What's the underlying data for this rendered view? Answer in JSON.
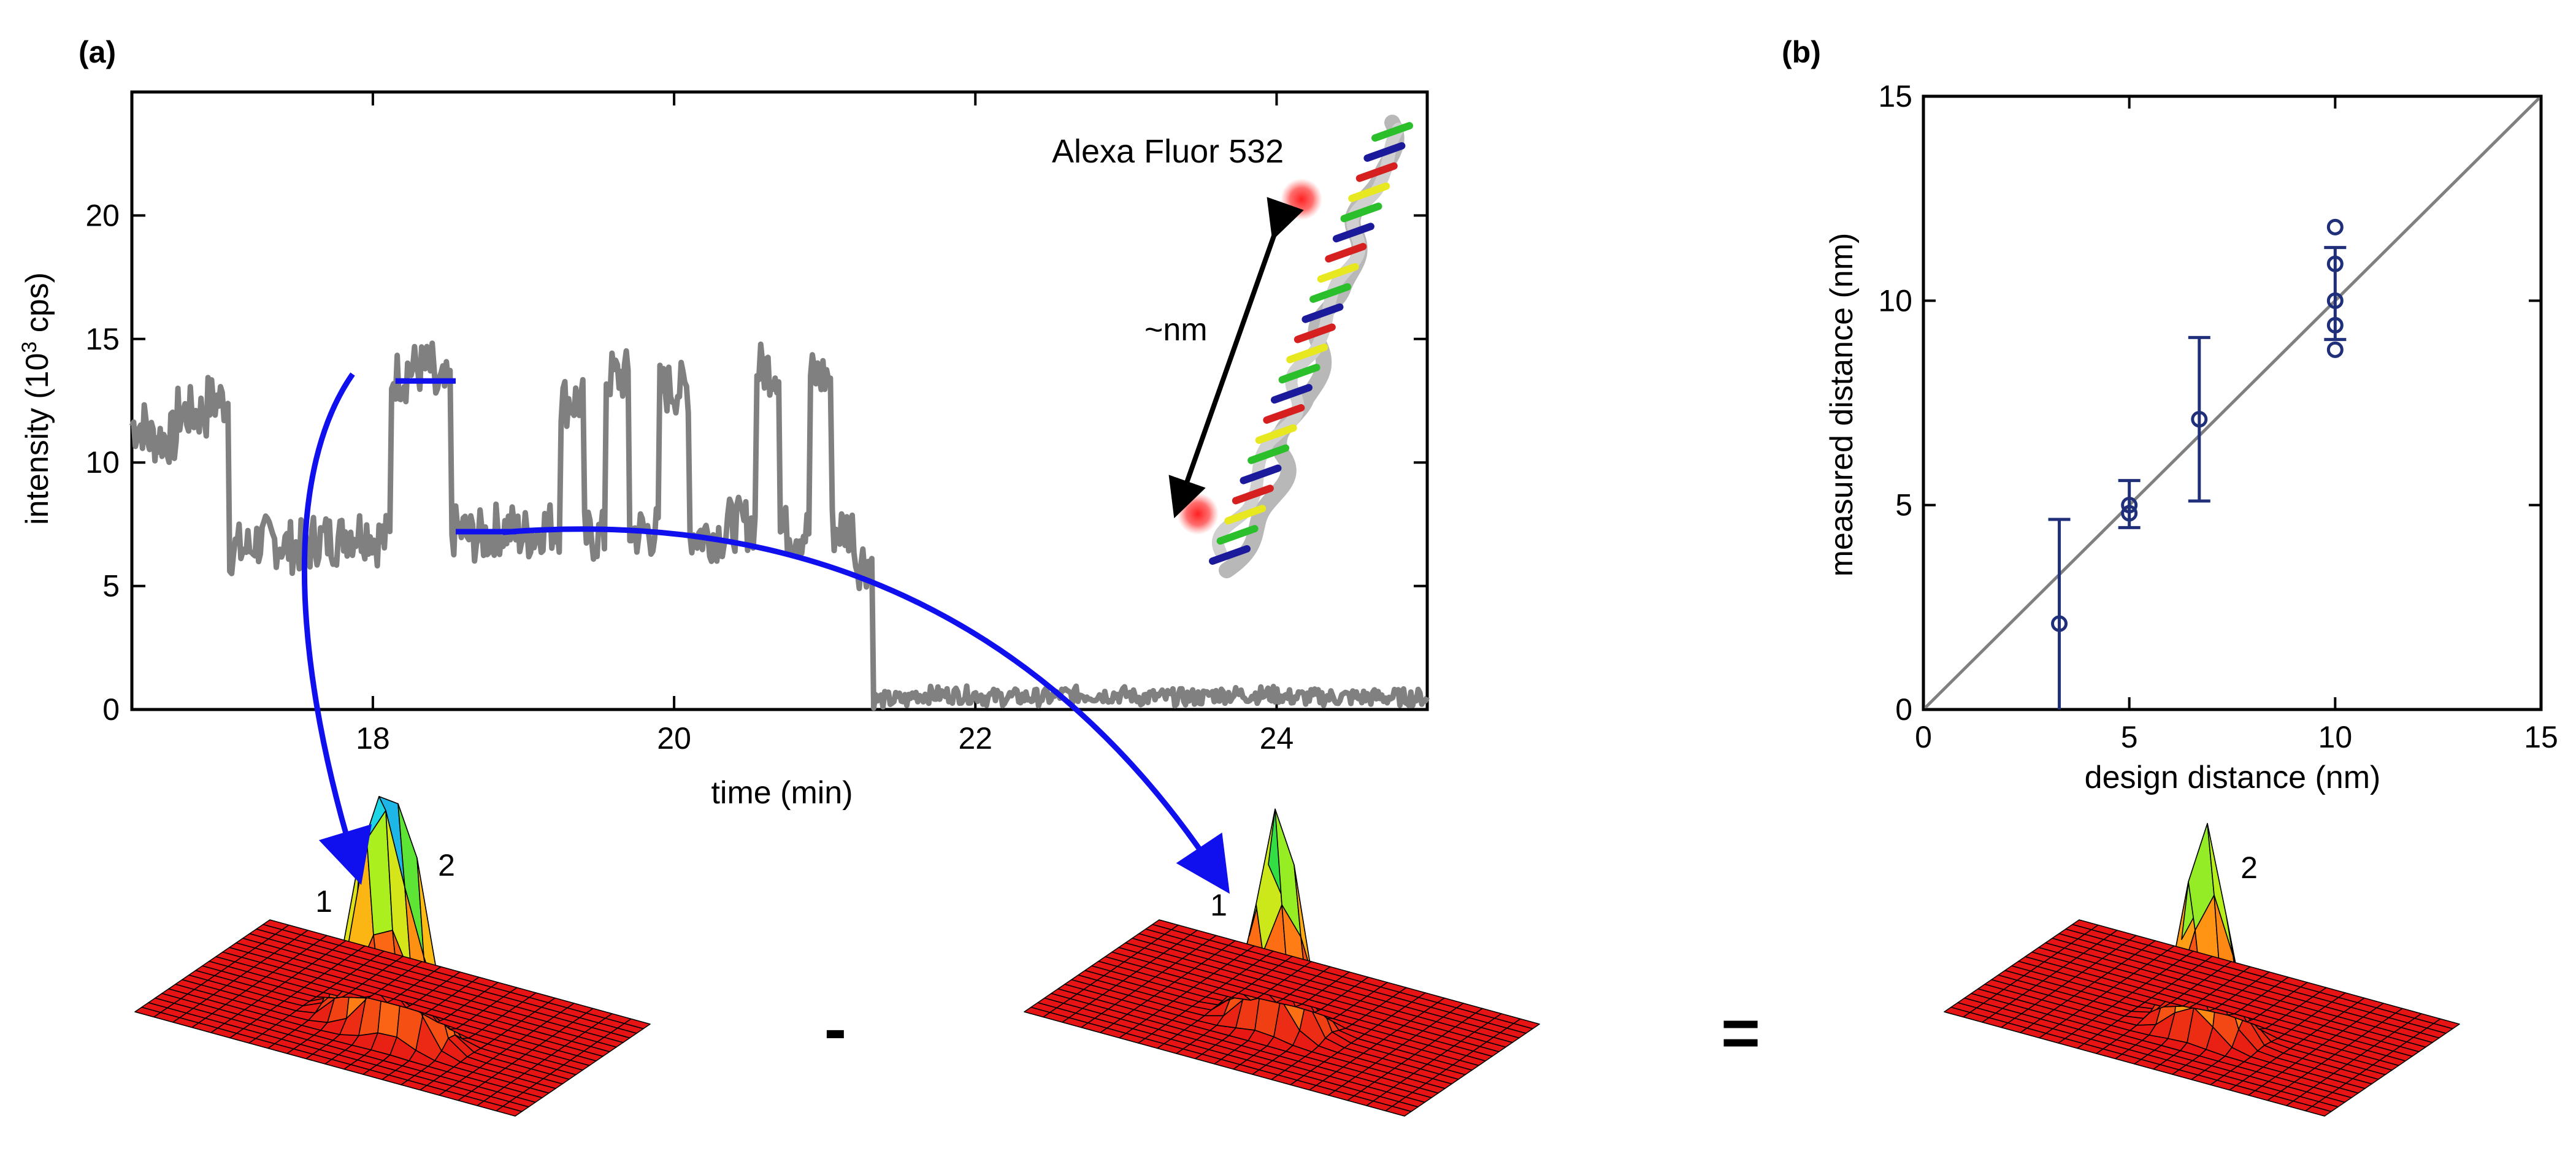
{
  "chart_data": [
    {
      "panel": "(a)",
      "type": "line",
      "xlabel": "time (min)",
      "ylabel_main": "intensity (10",
      "ylabel_sup": "3",
      "ylabel_end": " cps)",
      "xlim": [
        16.4,
        25.0
      ],
      "ylim": [
        0,
        25
      ],
      "xticks": [
        18,
        20,
        22,
        24
      ],
      "yticks": [
        0,
        5,
        10,
        15,
        20
      ],
      "series_color": "#808080",
      "trace": [
        [
          16.4,
          11.5
        ],
        [
          16.6,
          11.0
        ],
        [
          16.8,
          12.0
        ],
        [
          17.0,
          12.5
        ],
        [
          17.1,
          6.5
        ],
        [
          17.3,
          6.8
        ],
        [
          17.5,
          6.6
        ],
        [
          17.7,
          6.9
        ],
        [
          17.9,
          7.2
        ],
        [
          18.1,
          6.9
        ],
        [
          18.15,
          13.5
        ],
        [
          18.3,
          13.8
        ],
        [
          18.5,
          13.0
        ],
        [
          18.55,
          7.2
        ],
        [
          18.7,
          7.0
        ],
        [
          18.9,
          7.3
        ],
        [
          19.0,
          7.1
        ],
        [
          19.2,
          7.4
        ],
        [
          19.3,
          12.5
        ],
        [
          19.5,
          7.0
        ],
        [
          19.6,
          13.5
        ],
        [
          19.8,
          7.2
        ],
        [
          20.0,
          13.0
        ],
        [
          20.2,
          7.1
        ],
        [
          20.5,
          7.5
        ],
        [
          20.6,
          13.8
        ],
        [
          20.8,
          7.2
        ],
        [
          21.0,
          13.5
        ],
        [
          21.1,
          7.3
        ],
        [
          21.3,
          6.0
        ],
        [
          21.35,
          0.4
        ],
        [
          21.8,
          0.6
        ],
        [
          22.3,
          0.5
        ],
        [
          22.8,
          0.6
        ],
        [
          23.3,
          0.5
        ],
        [
          23.8,
          0.6
        ],
        [
          24.3,
          0.5
        ],
        [
          25.0,
          0.5
        ]
      ],
      "step_fits": [
        {
          "label": "2",
          "x": [
            18.15,
            18.55
          ],
          "y": 13.3
        },
        {
          "label": "1",
          "x": [
            18.55,
            18.95
          ],
          "y": 7.2
        }
      ],
      "annotations": {
        "dye": "Alexa Fluor 532",
        "distance": "~nm"
      }
    },
    {
      "panel": "(b)",
      "type": "scatter",
      "xlabel": "design distance (nm)",
      "ylabel": "measured distance (nm)",
      "xlim": [
        0,
        15
      ],
      "ylim": [
        0,
        15
      ],
      "xticks": [
        0,
        5,
        10,
        15
      ],
      "yticks": [
        0,
        5,
        10,
        15
      ],
      "points_color": "#1f2f7a",
      "points": [
        [
          3.3,
          2.1
        ],
        [
          5.0,
          4.8
        ],
        [
          5.0,
          5.0
        ],
        [
          6.7,
          7.1
        ],
        [
          10.0,
          8.8
        ],
        [
          10.0,
          9.4
        ],
        [
          10.0,
          10.0
        ],
        [
          10.0,
          10.9
        ],
        [
          10.0,
          11.8
        ]
      ],
      "error_bars": [
        {
          "x": 3.3,
          "low": 0.0,
          "high": 4.65
        },
        {
          "x": 5.0,
          "low": 4.45,
          "high": 5.6
        },
        {
          "x": 6.7,
          "low": 5.1,
          "high": 9.1
        },
        {
          "x": 10.0,
          "low": 9.05,
          "high": 11.3
        }
      ],
      "reference_line": [
        [
          0,
          0
        ],
        [
          15,
          15
        ]
      ]
    }
  ],
  "surfaces": {
    "left_labels": [
      "1",
      "2"
    ],
    "middle_label": "1",
    "right_label": "2",
    "minus": "-",
    "equals": "="
  }
}
